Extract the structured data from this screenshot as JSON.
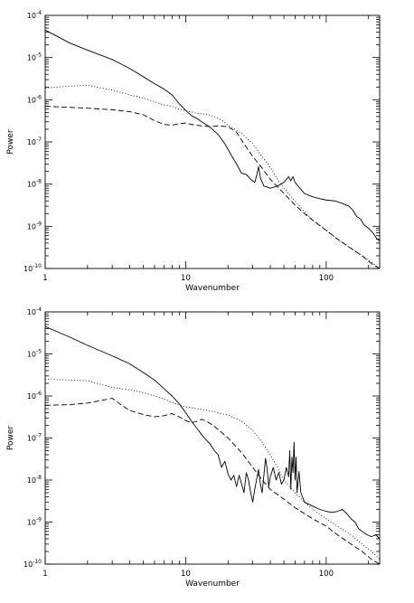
{
  "chart_data": [
    {
      "type": "line",
      "title": "",
      "xlabel": "Wavenumber",
      "ylabel": "Power",
      "xscale": "log",
      "yscale": "log",
      "xlim": [
        1,
        240
      ],
      "ylim": [
        1e-10,
        0.0001
      ],
      "grid": false,
      "x_ticks": [
        {
          "value": 1,
          "label": "1"
        },
        {
          "value": 10,
          "label": "10"
        },
        {
          "value": 100,
          "label": "100"
        }
      ],
      "y_ticks": [
        {
          "value": 1e-10,
          "exp": "-10"
        },
        {
          "value": 1e-09,
          "exp": "-9"
        },
        {
          "value": 1e-08,
          "exp": "-8"
        },
        {
          "value": 1e-07,
          "exp": "-7"
        },
        {
          "value": 1e-06,
          "exp": "-6"
        },
        {
          "value": 1e-05,
          "exp": "-5"
        },
        {
          "value": 0.0001,
          "exp": "-4"
        }
      ],
      "series": [
        {
          "style": "solid",
          "points": [
            [
              1,
              4.5e-05
            ],
            [
              1.5,
              2.2e-05
            ],
            [
              2,
              1.5e-05
            ],
            [
              3,
              9e-06
            ],
            [
              4,
              5.5e-06
            ],
            [
              5,
              3.5e-06
            ],
            [
              6,
              2.4e-06
            ],
            [
              7,
              1.8e-06
            ],
            [
              8,
              1.3e-06
            ],
            [
              9,
              8e-07
            ],
            [
              10,
              5.6e-07
            ],
            [
              11,
              4.2e-07
            ],
            [
              12,
              3.6e-07
            ],
            [
              13,
              3e-07
            ],
            [
              15,
              2.2e-07
            ],
            [
              17,
              1.5e-07
            ],
            [
              19,
              9e-08
            ],
            [
              21,
              5e-08
            ],
            [
              23,
              3e-08
            ],
            [
              25,
              1.8e-08
            ],
            [
              27,
              1.7e-08
            ],
            [
              29,
              1.3e-08
            ],
            [
              31,
              1.1e-08
            ],
            [
              32,
              1.6e-08
            ],
            [
              33,
              2.6e-08
            ],
            [
              34,
              1.4e-08
            ],
            [
              36,
              9e-09
            ],
            [
              40,
              8e-09
            ],
            [
              45,
              9e-09
            ],
            [
              50,
              1.1e-08
            ],
            [
              54,
              1.5e-08
            ],
            [
              56,
              1.2e-08
            ],
            [
              58,
              1.5e-08
            ],
            [
              60,
              1.1e-08
            ],
            [
              65,
              8e-09
            ],
            [
              70,
              6e-09
            ],
            [
              80,
              5e-09
            ],
            [
              90,
              4.5e-09
            ],
            [
              100,
              4.2e-09
            ],
            [
              115,
              4e-09
            ],
            [
              130,
              3.5e-09
            ],
            [
              145,
              3e-09
            ],
            [
              155,
              2.4e-09
            ],
            [
              165,
              1.7e-09
            ],
            [
              175,
              1.5e-09
            ],
            [
              185,
              1.1e-09
            ],
            [
              200,
              9e-10
            ],
            [
              215,
              7e-10
            ],
            [
              230,
              5e-10
            ],
            [
              240,
              4.5e-10
            ]
          ]
        },
        {
          "style": "dotted",
          "points": [
            [
              1,
              1.9e-06
            ],
            [
              1.5,
              2.1e-06
            ],
            [
              2,
              2.2e-06
            ],
            [
              2.5,
              1.9e-06
            ],
            [
              3,
              1.7e-06
            ],
            [
              4,
              1.3e-06
            ],
            [
              5,
              1.1e-06
            ],
            [
              6,
              9e-07
            ],
            [
              7,
              7.5e-07
            ],
            [
              8,
              7e-07
            ],
            [
              9,
              6e-07
            ],
            [
              10,
              5.5e-07
            ],
            [
              12,
              4.8e-07
            ],
            [
              14,
              4.5e-07
            ],
            [
              16,
              4e-07
            ],
            [
              18,
              3.3e-07
            ],
            [
              20,
              2.5e-07
            ],
            [
              25,
              1.6e-07
            ],
            [
              30,
              9e-08
            ],
            [
              35,
              4.5e-08
            ],
            [
              40,
              2.5e-08
            ],
            [
              45,
              1.3e-08
            ],
            [
              50,
              8e-09
            ],
            [
              60,
              4e-09
            ],
            [
              70,
              2.2e-09
            ],
            [
              80,
              1.4e-09
            ],
            [
              100,
              8e-10
            ],
            [
              120,
              5e-10
            ],
            [
              150,
              3e-10
            ],
            [
              180,
              2e-10
            ],
            [
              210,
              1.4e-10
            ],
            [
              240,
              1e-10
            ]
          ]
        },
        {
          "style": "dashed",
          "points": [
            [
              1,
              7e-07
            ],
            [
              1.5,
              6.6e-07
            ],
            [
              2,
              6.3e-07
            ],
            [
              3,
              5.8e-07
            ],
            [
              4,
              5.2e-07
            ],
            [
              5,
              4.4e-07
            ],
            [
              6,
              3.2e-07
            ],
            [
              7,
              2.6e-07
            ],
            [
              8,
              2.5e-07
            ],
            [
              9,
              2.7e-07
            ],
            [
              10,
              2.8e-07
            ],
            [
              11,
              2.6e-07
            ],
            [
              13,
              2.4e-07
            ],
            [
              15,
              2.3e-07
            ],
            [
              17,
              2.4e-07
            ],
            [
              20,
              2.3e-07
            ],
            [
              23,
              1.7e-07
            ],
            [
              26,
              9e-08
            ],
            [
              30,
              4.5e-08
            ],
            [
              35,
              2.4e-08
            ],
            [
              40,
              1.3e-08
            ],
            [
              50,
              6e-09
            ],
            [
              60,
              3.2e-09
            ],
            [
              70,
              2e-09
            ],
            [
              80,
              1.4e-09
            ],
            [
              100,
              8e-10
            ],
            [
              120,
              5e-10
            ],
            [
              150,
              3e-10
            ],
            [
              180,
              2e-10
            ],
            [
              210,
              1.3e-10
            ],
            [
              240,
              1e-10
            ]
          ]
        }
      ]
    },
    {
      "type": "line",
      "title": "",
      "xlabel": "Wavenumber",
      "ylabel": "Power",
      "xscale": "log",
      "yscale": "log",
      "xlim": [
        1,
        240
      ],
      "ylim": [
        1e-10,
        0.0001
      ],
      "grid": false,
      "x_ticks": [
        {
          "value": 1,
          "label": "1"
        },
        {
          "value": 10,
          "label": "10"
        },
        {
          "value": 100,
          "label": "100"
        }
      ],
      "y_ticks": [
        {
          "value": 1e-10,
          "exp": "-10"
        },
        {
          "value": 1e-09,
          "exp": "-9"
        },
        {
          "value": 1e-08,
          "exp": "-8"
        },
        {
          "value": 1e-07,
          "exp": "-7"
        },
        {
          "value": 1e-06,
          "exp": "-6"
        },
        {
          "value": 1e-05,
          "exp": "-5"
        },
        {
          "value": 0.0001,
          "exp": "-4"
        }
      ],
      "series": [
        {
          "style": "solid",
          "points": [
            [
              1,
              4.5e-05
            ],
            [
              1.5,
              2.5e-05
            ],
            [
              2,
              1.6e-05
            ],
            [
              3,
              9e-06
            ],
            [
              4,
              5.8e-06
            ],
            [
              5,
              3.6e-06
            ],
            [
              6,
              2.4e-06
            ],
            [
              7,
              1.5e-06
            ],
            [
              8,
              1e-06
            ],
            [
              9,
              6.5e-07
            ],
            [
              10,
              4e-07
            ],
            [
              11,
              2.5e-07
            ],
            [
              12,
              1.7e-07
            ],
            [
              13,
              1.2e-07
            ],
            [
              14,
              9e-08
            ],
            [
              15,
              7e-08
            ],
            [
              16,
              5e-08
            ],
            [
              17,
              4e-08
            ],
            [
              18,
              2e-08
            ],
            [
              19,
              2.8e-08
            ],
            [
              20,
              1.4e-08
            ],
            [
              21,
              1e-08
            ],
            [
              22,
              1.3e-08
            ],
            [
              23,
              7e-09
            ],
            [
              24,
              1.3e-08
            ],
            [
              25,
              8e-09
            ],
            [
              26,
              5e-09
            ],
            [
              27,
              1.5e-08
            ],
            [
              28,
              1e-08
            ],
            [
              29,
              5e-09
            ],
            [
              30,
              3e-09
            ],
            [
              31,
              6e-09
            ],
            [
              33,
              1.8e-08
            ],
            [
              34,
              8e-09
            ],
            [
              35,
              5e-09
            ],
            [
              37,
              3.3e-08
            ],
            [
              38,
              1.8e-08
            ],
            [
              39,
              7e-09
            ],
            [
              40,
              1.2e-08
            ],
            [
              42,
              2e-08
            ],
            [
              44,
              1e-08
            ],
            [
              46,
              1.5e-08
            ],
            [
              48,
              8e-09
            ],
            [
              50,
              1e-08
            ],
            [
              52,
              2e-08
            ],
            [
              54,
              1.2e-08
            ],
            [
              55,
              5e-08
            ],
            [
              56,
              6e-09
            ],
            [
              57,
              3.5e-08
            ],
            [
              58,
              1.5e-08
            ],
            [
              59,
              8e-08
            ],
            [
              60,
              1e-08
            ],
            [
              61,
              3.5e-08
            ],
            [
              62,
              5e-09
            ],
            [
              64,
              1.6e-08
            ],
            [
              66,
              5e-09
            ],
            [
              70,
              3e-09
            ],
            [
              80,
              2.4e-09
            ],
            [
              90,
              2e-09
            ],
            [
              100,
              1.8e-09
            ],
            [
              110,
              1.7e-09
            ],
            [
              120,
              1.8e-09
            ],
            [
              130,
              2e-09
            ],
            [
              140,
              1.6e-09
            ],
            [
              150,
              1.2e-09
            ],
            [
              160,
              1e-09
            ],
            [
              170,
              7e-10
            ],
            [
              180,
              6e-10
            ],
            [
              195,
              5e-10
            ],
            [
              210,
              4.5e-10
            ],
            [
              225,
              5e-10
            ],
            [
              240,
              4e-10
            ]
          ]
        },
        {
          "style": "dotted",
          "points": [
            [
              1,
              2.5e-06
            ],
            [
              1.5,
              2.4e-06
            ],
            [
              2,
              2.3e-06
            ],
            [
              3,
              1.6e-06
            ],
            [
              4,
              1.4e-06
            ],
            [
              5,
              1.2e-06
            ],
            [
              6,
              1e-06
            ],
            [
              7,
              8.5e-07
            ],
            [
              8,
              7e-07
            ],
            [
              9,
              6e-07
            ],
            [
              10,
              5.5e-07
            ],
            [
              12,
              5e-07
            ],
            [
              14,
              4.6e-07
            ],
            [
              16,
              4.2e-07
            ],
            [
              18,
              3.8e-07
            ],
            [
              20,
              3.5e-07
            ],
            [
              25,
              2.5e-07
            ],
            [
              30,
              1.5e-07
            ],
            [
              35,
              8e-08
            ],
            [
              40,
              4e-08
            ],
            [
              45,
              2e-08
            ],
            [
              50,
              1e-08
            ],
            [
              60,
              5e-09
            ],
            [
              70,
              3e-09
            ],
            [
              80,
              2e-09
            ],
            [
              100,
              1.2e-09
            ],
            [
              120,
              8e-10
            ],
            [
              150,
              5e-10
            ],
            [
              180,
              3e-10
            ],
            [
              210,
              2e-10
            ],
            [
              240,
              1.3e-10
            ]
          ]
        },
        {
          "style": "dashed",
          "points": [
            [
              1,
              6e-07
            ],
            [
              1.5,
              6.2e-07
            ],
            [
              2,
              6.8e-07
            ],
            [
              2.5,
              7.8e-07
            ],
            [
              3,
              8.8e-07
            ],
            [
              3.5,
              6e-07
            ],
            [
              4,
              4.5e-07
            ],
            [
              5,
              3.6e-07
            ],
            [
              6,
              3.2e-07
            ],
            [
              7,
              3.4e-07
            ],
            [
              8,
              3.8e-07
            ],
            [
              9,
              3.2e-07
            ],
            [
              10,
              2.6e-07
            ],
            [
              11,
              2.3e-07
            ],
            [
              12,
              2.5e-07
            ],
            [
              13,
              2.8e-07
            ],
            [
              14,
              2.5e-07
            ],
            [
              15,
              2.2e-07
            ],
            [
              17,
              1.6e-07
            ],
            [
              20,
              1e-07
            ],
            [
              25,
              4.5e-08
            ],
            [
              30,
              2e-08
            ],
            [
              35,
              1e-08
            ],
            [
              40,
              6e-09
            ],
            [
              50,
              3.5e-09
            ],
            [
              60,
              2.2e-09
            ],
            [
              80,
              1.2e-09
            ],
            [
              100,
              8e-10
            ],
            [
              120,
              5e-10
            ],
            [
              150,
              3e-10
            ],
            [
              180,
              2e-10
            ],
            [
              210,
              1.3e-10
            ],
            [
              240,
              1e-10
            ]
          ]
        }
      ]
    }
  ]
}
